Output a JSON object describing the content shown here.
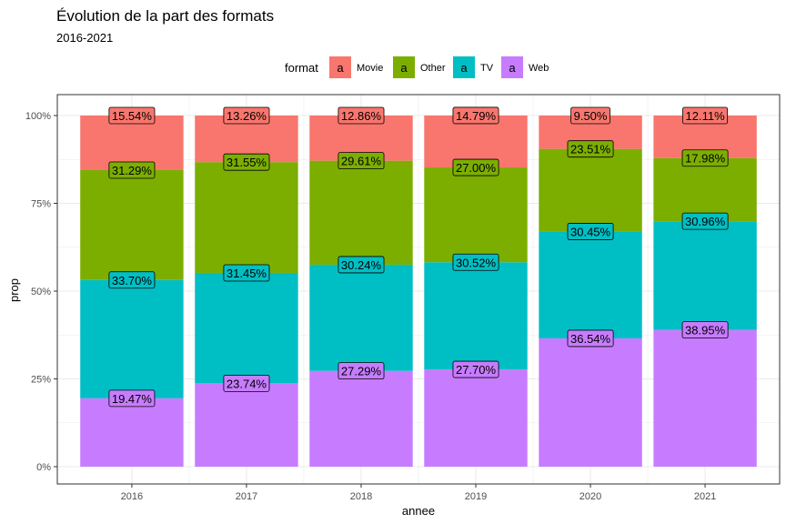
{
  "chart_data": {
    "type": "bar",
    "stacked": true,
    "title": "Évolution de la part des formats",
    "subtitle": "2016-2021",
    "xlabel": "annee",
    "ylabel": "prop",
    "ylim": [
      0,
      1
    ],
    "yticks": [
      {
        "value": 0,
        "label": "0%"
      },
      {
        "value": 0.25,
        "label": "25%"
      },
      {
        "value": 0.5,
        "label": "50%"
      },
      {
        "value": 0.75,
        "label": "75%"
      },
      {
        "value": 1,
        "label": "100%"
      }
    ],
    "categories": [
      "2016",
      "2017",
      "2018",
      "2019",
      "2020",
      "2021"
    ],
    "legend": {
      "title": "format",
      "position": "top",
      "key_glyph": "a"
    },
    "series": [
      {
        "name": "Movie",
        "color": "#F8766D",
        "values": [
          0.1554,
          0.1326,
          0.1286,
          0.1479,
          0.095,
          0.1211
        ],
        "labels": [
          "15.54%",
          "13.26%",
          "12.86%",
          "14.79%",
          "9.50%",
          "12.11%"
        ]
      },
      {
        "name": "Other",
        "color": "#7CAE00",
        "values": [
          0.3129,
          0.3155,
          0.2961,
          0.27,
          0.2351,
          0.1798
        ],
        "labels": [
          "31.29%",
          "31.55%",
          "29.61%",
          "27.00%",
          "23.51%",
          "17.98%"
        ]
      },
      {
        "name": "TV",
        "color": "#00BFC4",
        "values": [
          0.337,
          0.3145,
          0.3024,
          0.3052,
          0.3045,
          0.3096
        ],
        "labels": [
          "33.70%",
          "31.45%",
          "30.24%",
          "30.52%",
          "30.45%",
          "30.96%"
        ]
      },
      {
        "name": "Web",
        "color": "#C77CFF",
        "values": [
          0.1947,
          0.2374,
          0.2729,
          0.277,
          0.3654,
          0.3895
        ],
        "labels": [
          "19.47%",
          "23.74%",
          "27.29%",
          "27.70%",
          "36.54%",
          "38.95%"
        ]
      }
    ],
    "grid": true,
    "background": "#FFFFFF",
    "grid_color": "#EBEBEB",
    "border_color": "#333333"
  }
}
